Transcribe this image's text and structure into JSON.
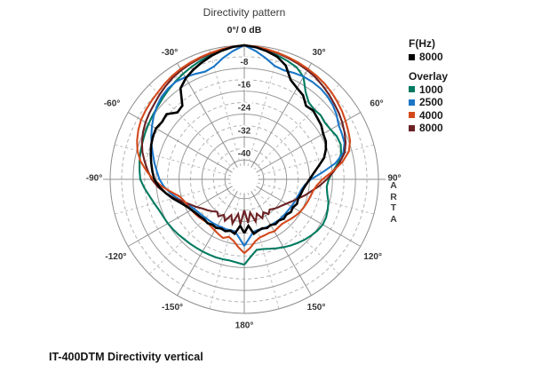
{
  "title": "Directivity pattern",
  "caption": "IT-400DTM Directivity vertical",
  "watermark": "ARTA",
  "legend": {
    "sections": [
      {
        "header": "F(Hz)",
        "items": [
          {
            "label": "8000",
            "color": "#000000"
          }
        ]
      },
      {
        "header": "Overlay",
        "items": [
          {
            "label": "1000",
            "color": "#007a60"
          },
          {
            "label": "2500",
            "color": "#1b76c6"
          },
          {
            "label": "4000",
            "color": "#d4491c"
          },
          {
            "label": "8000",
            "color": "#6b2123"
          }
        ]
      }
    ]
  },
  "chart_data": {
    "type": "polar",
    "title": "Directivity pattern",
    "top_label": "0°/ 0 dB",
    "units": "dB (normalized, 0 dB at 0°)",
    "db_solid_rings": [
      0,
      -8,
      -16,
      -24,
      -32,
      -40
    ],
    "db_dashed_rings": [
      -4,
      -12,
      -20,
      -28,
      -36
    ],
    "db_tick_labels": [
      "-8",
      "-16",
      "-24",
      "-32",
      "-40"
    ],
    "angle_labels": [
      {
        "angle": 30,
        "text": "30°"
      },
      {
        "angle": 60,
        "text": "60°"
      },
      {
        "angle": 90,
        "text": "90°"
      },
      {
        "angle": 120,
        "text": "120°"
      },
      {
        "angle": 150,
        "text": "150°"
      },
      {
        "angle": 180,
        "text": "180°"
      },
      {
        "angle": -150,
        "text": "-150°"
      },
      {
        "angle": -120,
        "text": "-120°"
      },
      {
        "angle": -90,
        "text": "-90°"
      },
      {
        "angle": -60,
        "text": "-60°"
      },
      {
        "angle": -30,
        "text": "-30°"
      }
    ],
    "angle_start_deg": -180,
    "angle_step_deg": 5,
    "series": [
      {
        "name": "1000",
        "group": "Overlay",
        "color": "#007a60",
        "width": 2.1,
        "values_db": [
          -17,
          -17.6,
          -18,
          -17.9,
          -17.8,
          -17.8,
          -17.7,
          -17.6,
          -17.4,
          -17.2,
          -16.8,
          -16.4,
          -16,
          -15.7,
          -15.2,
          -14.3,
          -13.2,
          -11.8,
          -10.5,
          -10.1,
          -9.7,
          -9.3,
          -9,
          -8.6,
          -8.2,
          -7.8,
          -7.3,
          -6.6,
          -5.8,
          -5,
          -4.2,
          -3.4,
          -2.6,
          -1.8,
          -1,
          -0.4,
          0,
          -0.5,
          -1.2,
          -2,
          -2.8,
          -3.6,
          -5.5,
          -9.5,
          -11.8,
          -12.3,
          -12,
          -12.4,
          -12,
          -11.2,
          -11,
          -11.8,
          -13.5,
          -15.8,
          -17.3,
          -17.9,
          -17.4,
          -16.4,
          -15.8,
          -15.3,
          -15.2,
          -15.6,
          -16.3,
          -17,
          -17.8,
          -18.6,
          -19.4,
          -20.2,
          -21,
          -21.6,
          -21.8,
          -19.8,
          -17
        ]
      },
      {
        "name": "2500",
        "group": "Overlay",
        "color": "#1b76c6",
        "width": 2.1,
        "values_db": [
          -23.5,
          -26.3,
          -28.3,
          -28.4,
          -28.2,
          -28.3,
          -28.1,
          -28,
          -27.9,
          -27.7,
          -27.4,
          -27,
          -26.4,
          -25.4,
          -24,
          -22.2,
          -20.4,
          -18.6,
          -17.2,
          -16.2,
          -15,
          -13.8,
          -12.4,
          -11,
          -9.6,
          -8.2,
          -7,
          -6,
          -5.4,
          -5.2,
          -5.6,
          -6.2,
          -6.8,
          -6,
          -3.8,
          -1.8,
          0,
          -1.8,
          -3.8,
          -5.8,
          -6.3,
          -5.8,
          -5.4,
          -5.3,
          -5.4,
          -5.8,
          -6.5,
          -7.5,
          -8.8,
          -9.2,
          -9.6,
          -11,
          -14.5,
          -19.5,
          -23.5,
          -25.5,
          -26.5,
          -27,
          -27.4,
          -27.6,
          -27.8,
          -28,
          -28.1,
          -28.2,
          -28.1,
          -28.3,
          -28.2,
          -28.4,
          -28.3,
          -28.5,
          -28.2,
          -26.2,
          -23.5
        ]
      },
      {
        "name": "8000",
        "group": "Overlay",
        "color": "#6b2123",
        "width": 2.1,
        "values_db": [
          -36,
          -31,
          -34.5,
          -30.8,
          -33.5,
          -30.8,
          -32.5,
          -31,
          -32,
          -31,
          -30,
          -29,
          -27.5,
          -26,
          -24,
          -21.5,
          -19,
          -16.5,
          -14.5,
          -13,
          -11.5,
          -10,
          -8.8,
          -7.8,
          -7,
          -6.4,
          -5.8,
          -5,
          -4.2,
          -3.4,
          -2.8,
          -2.3,
          -1.8,
          -1.3,
          -0.8,
          -0.35,
          0,
          -0.35,
          -0.8,
          -1.3,
          -1.8,
          -2.3,
          -2.8,
          -3.4,
          -4.2,
          -5,
          -5.8,
          -6.5,
          -7.3,
          -8.2,
          -9.2,
          -10.5,
          -13,
          -15.5,
          -18,
          -20.5,
          -23,
          -25,
          -27,
          -28.5,
          -29.8,
          -30.8,
          -31.5,
          -32.2,
          -33,
          -32,
          -33.5,
          -31.8,
          -34,
          -31.5,
          -35,
          -31.5,
          -36
        ]
      },
      {
        "name": "4000",
        "group": "Overlay",
        "color": "#d4491c",
        "width": 2.1,
        "values_db": [
          -21,
          -23,
          -25,
          -26,
          -25,
          -25.6,
          -26.2,
          -26.6,
          -27,
          -26.6,
          -26.2,
          -25.8,
          -25.4,
          -25,
          -24.5,
          -23.5,
          -21,
          -18,
          -15,
          -12.5,
          -10,
          -8.2,
          -7,
          -6,
          -5.2,
          -4.8,
          -4.4,
          -4,
          -3.4,
          -2.8,
          -2.3,
          -1.9,
          -1.5,
          -1.1,
          -0.7,
          -0.3,
          0,
          -0.3,
          -0.7,
          -1.1,
          -1.5,
          -1.9,
          -2.3,
          -2.7,
          -3.2,
          -3.8,
          -4.5,
          -5.2,
          -6,
          -6.8,
          -7.5,
          -9,
          -12,
          -16,
          -19.5,
          -21.5,
          -22.5,
          -23,
          -23.4,
          -23.8,
          -24.2,
          -24.8,
          -25.4,
          -26,
          -26.4,
          -26.2,
          -25.8,
          -26.2,
          -26,
          -25.8,
          -24.8,
          -22.8,
          -21
        ]
      },
      {
        "name": "8000",
        "group": "F(Hz)",
        "color": "#000000",
        "width": 2.6,
        "values_db": [
          -28,
          -30.5,
          -27.5,
          -28.2,
          -27.5,
          -27.8,
          -27.2,
          -27.4,
          -26.8,
          -27,
          -26.6,
          -26.2,
          -25.5,
          -24.5,
          -23,
          -21,
          -19,
          -17,
          -15.4,
          -14.6,
          -13.8,
          -13,
          -12.2,
          -11.6,
          -11.2,
          -11.8,
          -11.4,
          -13.8,
          -13.2,
          -8,
          -6,
          -4.6,
          -3.4,
          -2.2,
          -1.2,
          -0.4,
          0,
          -0.5,
          -1.4,
          -2.5,
          -4.5,
          -8.5,
          -10,
          -11,
          -13.3,
          -12.8,
          -13.5,
          -14,
          -15,
          -15.4,
          -16.5,
          -18,
          -20.5,
          -22.5,
          -24,
          -25.2,
          -26,
          -26.4,
          -26.8,
          -26.5,
          -27.2,
          -26.9,
          -27.6,
          -27.3,
          -28,
          -27.7,
          -28.4,
          -28,
          -28.6,
          -28.2,
          -27.5,
          -30.5,
          -28
        ]
      }
    ]
  }
}
